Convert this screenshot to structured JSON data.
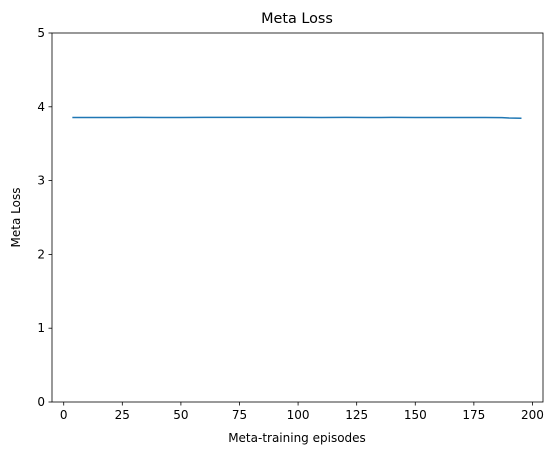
{
  "chart_data": {
    "type": "line",
    "title": "Meta Loss",
    "xlabel": "Meta-training episodes",
    "ylabel": "Meta Loss",
    "xlim": [
      -5,
      204.5
    ],
    "ylim": [
      0,
      5
    ],
    "xticks": [
      0,
      25,
      50,
      75,
      100,
      125,
      150,
      175,
      200
    ],
    "xtick_labels": [
      "0",
      "25",
      "50",
      "75",
      "100",
      "125",
      "150",
      "175",
      "200"
    ],
    "yticks": [
      0,
      1,
      2,
      3,
      4,
      5
    ],
    "ytick_labels": [
      "0",
      "1",
      "2",
      "3",
      "4",
      "5"
    ],
    "grid": false,
    "legend": false,
    "series": [
      {
        "color": "#1f77b4",
        "x": [
          4,
          10,
          20,
          30,
          40,
          50,
          60,
          70,
          80,
          90,
          100,
          110,
          120,
          130,
          140,
          150,
          160,
          170,
          180,
          187,
          190,
          195
        ],
        "y": [
          3.855,
          3.855,
          3.855,
          3.856,
          3.855,
          3.855,
          3.856,
          3.856,
          3.856,
          3.856,
          3.856,
          3.855,
          3.856,
          3.855,
          3.856,
          3.855,
          3.855,
          3.855,
          3.855,
          3.854,
          3.848,
          3.845
        ]
      }
    ]
  }
}
